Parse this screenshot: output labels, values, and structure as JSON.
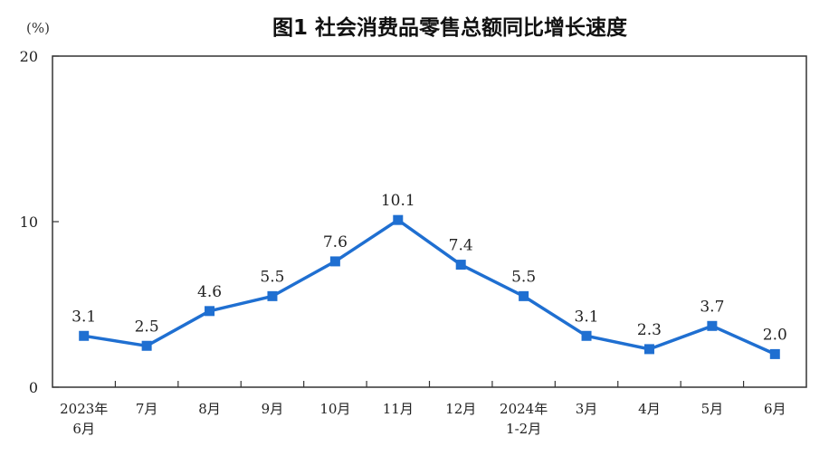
{
  "chart_data": {
    "type": "line",
    "title": "图1  社会消费品零售总额同比增长速度",
    "unit": "(%)",
    "ylim": [
      0,
      20
    ],
    "yticks": [
      "0",
      "10",
      "20"
    ],
    "categories": [
      [
        "2023年",
        "6月"
      ],
      [
        "7月"
      ],
      [
        "8月"
      ],
      [
        "9月"
      ],
      [
        "10月"
      ],
      [
        "11月"
      ],
      [
        "12月"
      ],
      [
        "2024年",
        "1-2月"
      ],
      [
        "3月"
      ],
      [
        "4月"
      ],
      [
        "5月"
      ],
      [
        "6月"
      ]
    ],
    "values": [
      3.1,
      2.5,
      4.6,
      5.5,
      7.6,
      10.1,
      7.4,
      5.5,
      3.1,
      2.3,
      3.7,
      2.0
    ],
    "labels": [
      "3.1",
      "2.5",
      "4.6",
      "5.5",
      "7.6",
      "10.1",
      "7.4",
      "5.5",
      "3.1",
      "2.3",
      "3.7",
      "2.0"
    ],
    "line_color": "#1f6fd1",
    "grid": false,
    "legend": "none"
  }
}
